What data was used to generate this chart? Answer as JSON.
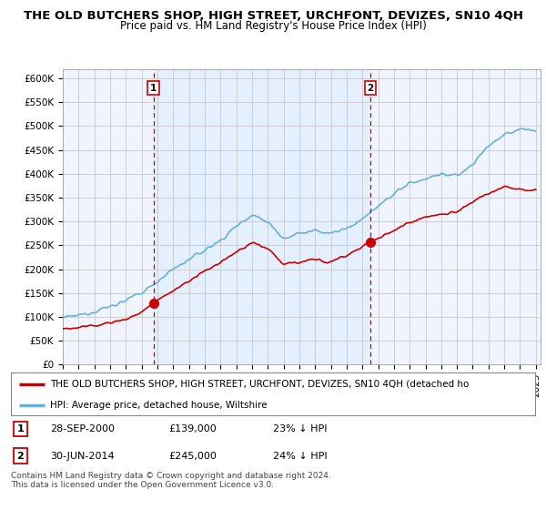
{
  "title": "THE OLD BUTCHERS SHOP, HIGH STREET, URCHFONT, DEVIZES, SN10 4QH",
  "subtitle": "Price paid vs. HM Land Registry's House Price Index (HPI)",
  "ylim": [
    0,
    620000
  ],
  "yticks": [
    0,
    50000,
    100000,
    150000,
    200000,
    250000,
    300000,
    350000,
    400000,
    450000,
    500000,
    550000,
    600000
  ],
  "ytick_labels": [
    "£0",
    "£50K",
    "£100K",
    "£150K",
    "£200K",
    "£250K",
    "£300K",
    "£350K",
    "£400K",
    "£450K",
    "£500K",
    "£550K",
    "£600K"
  ],
  "hpi_color": "#6baed6",
  "price_color": "#cc0000",
  "sale_1_year": 2000.75,
  "sale_1_price": 139000,
  "sale_2_year": 2014.5,
  "sale_2_price": 245000,
  "fill_color": "#ddeeff",
  "fill_alpha": 0.5,
  "legend_red_label": "THE OLD BUTCHERS SHOP, HIGH STREET, URCHFONT, DEVIZES, SN10 4QH (detached ho",
  "legend_blue_label": "HPI: Average price, detached house, Wiltshire",
  "footer": "Contains HM Land Registry data © Crown copyright and database right 2024.\nThis data is licensed under the Open Government Licence v3.0.",
  "bg_color": "#ffffff",
  "grid_color": "#c8c8c8",
  "title_fontsize": 9.5,
  "subtitle_fontsize": 8.5,
  "tick_fontsize": 7.5,
  "hpi_anchors_x": [
    1995,
    1996,
    1997,
    1998,
    1999,
    2000,
    2001,
    2002,
    2003,
    2004,
    2005,
    2006,
    2007,
    2008,
    2009,
    2010,
    2011,
    2012,
    2013,
    2014,
    2015,
    2016,
    2017,
    2018,
    2019,
    2020,
    2021,
    2022,
    2023,
    2024,
    2025
  ],
  "hpi_anchors_y": [
    98000,
    103000,
    112000,
    122000,
    135000,
    150000,
    175000,
    200000,
    220000,
    240000,
    260000,
    290000,
    315000,
    300000,
    265000,
    275000,
    280000,
    275000,
    285000,
    305000,
    330000,
    360000,
    380000,
    390000,
    400000,
    395000,
    420000,
    460000,
    480000,
    495000,
    490000
  ],
  "price_anchors_x": [
    1995,
    1996,
    1997,
    1998,
    1999,
    2000,
    2001,
    2002,
    2003,
    2004,
    2005,
    2006,
    2007,
    2008,
    2009,
    2010,
    2011,
    2012,
    2013,
    2014,
    2015,
    2016,
    2017,
    2018,
    2019,
    2020,
    2021,
    2022,
    2023,
    2024,
    2025
  ],
  "price_anchors_y": [
    75000,
    78000,
    82000,
    88000,
    95000,
    110000,
    135000,
    155000,
    175000,
    195000,
    215000,
    235000,
    255000,
    245000,
    210000,
    215000,
    220000,
    215000,
    230000,
    248000,
    265000,
    280000,
    300000,
    310000,
    315000,
    320000,
    340000,
    360000,
    375000,
    368000,
    365000
  ]
}
